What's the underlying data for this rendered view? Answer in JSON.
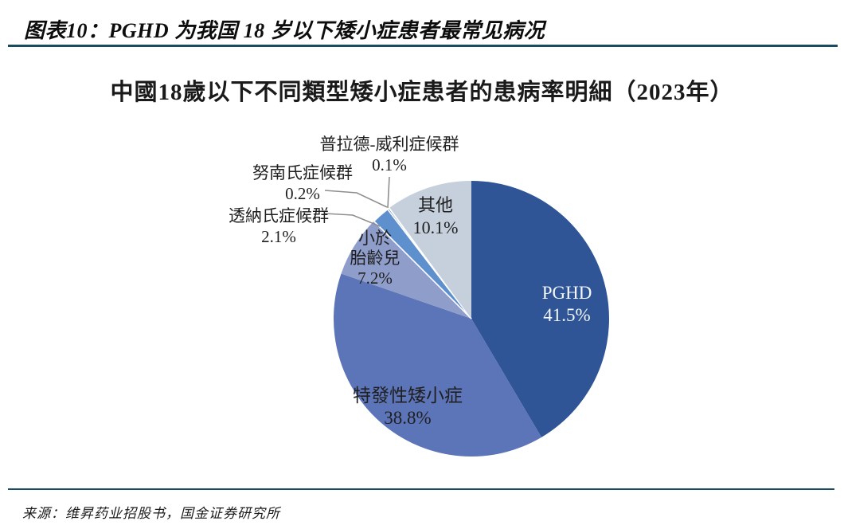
{
  "page": {
    "header": {
      "title": "图表10：PGHD 为我国 18 岁以下矮小症患者最常见病况"
    },
    "source": {
      "text": "来源：维昇药业招股书，国金证券研究所"
    },
    "rule_color": "#1A4C61"
  },
  "chart_data": {
    "type": "pie",
    "title": "中國18歲以下不同類型矮小症患者的患病率明細（2023年）",
    "year": "2023",
    "start_angle_deg": 0,
    "direction": "clockwise",
    "legend_position": "none",
    "slices": [
      {
        "id": "pghd",
        "label": "PGHD",
        "value": 41.5,
        "display": "41.5%",
        "color": "#2F5596",
        "label_color": "#F4F7FB"
      },
      {
        "id": "idiopathic",
        "label": "特發性矮小症",
        "value": 38.8,
        "display": "38.8%",
        "color": "#5C74B8",
        "label_color": "#1F1F1F"
      },
      {
        "id": "sga",
        "label": "小於胎齡兒",
        "value": 7.2,
        "display": "7.2%",
        "color": "#8F9DCB",
        "label_color": "#1F1F1F"
      },
      {
        "id": "turner",
        "label": "透納氏症候群",
        "value": 2.1,
        "display": "2.1%",
        "color": "#5F90CE",
        "label_color": "#1F1F1F"
      },
      {
        "id": "noonan",
        "label": "努南氏症候群",
        "value": 0.2,
        "display": "0.2%",
        "color": "#36619B",
        "label_color": "#1F1F1F"
      },
      {
        "id": "prader",
        "label": "普拉德-威利症候群",
        "value": 0.1,
        "display": "0.1%",
        "color": "#9FB7DA",
        "label_color": "#1F1F1F"
      },
      {
        "id": "other",
        "label": "其他",
        "value": 10.1,
        "display": "10.1%",
        "color": "#C6CFDC",
        "label_color": "#1F1F1F"
      }
    ]
  },
  "pie_labels": {
    "pghd": [
      "PGHD",
      "41.5%"
    ],
    "idiopathic": [
      "特發性矮小症",
      "38.8%"
    ],
    "sga": [
      "小於",
      "胎齡兒",
      "7.2%"
    ],
    "other": [
      "其他",
      "10.1%"
    ],
    "turner": [
      "透納氏症候群",
      "2.1%"
    ],
    "noonan": [
      "努南氏症候群",
      "0.2%"
    ],
    "prader": [
      "普拉德-威利症候群",
      "0.1%"
    ]
  }
}
